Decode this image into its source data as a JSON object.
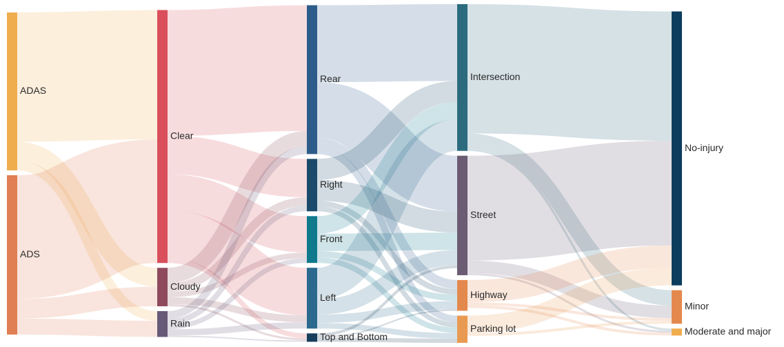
{
  "chart_data": {
    "type": "sankey",
    "title": "",
    "columns": [
      [
        "ADAS",
        "ADS"
      ],
      [
        "Clear",
        "Cloudy",
        "Rain"
      ],
      [
        "Rear",
        "Right",
        "Front",
        "Left",
        "Top and Bottom"
      ],
      [
        "Intersection",
        "Street",
        "Highway",
        "Parking lot"
      ],
      [
        "No-injury",
        "Minor",
        "Moderate and major"
      ]
    ],
    "nodes": [
      {
        "name": "ADAS",
        "color": "#F0AD4E"
      },
      {
        "name": "ADS",
        "color": "#E07E54"
      },
      {
        "name": "Clear",
        "color": "#D94F5C"
      },
      {
        "name": "Cloudy",
        "color": "#8E4A5C"
      },
      {
        "name": "Rain",
        "color": "#665A78"
      },
      {
        "name": "Rear",
        "color": "#2E5C8A"
      },
      {
        "name": "Right",
        "color": "#1B4A6B"
      },
      {
        "name": "Front",
        "color": "#0E7A8C"
      },
      {
        "name": "Left",
        "color": "#2B6A8E"
      },
      {
        "name": "Top and Bottom",
        "color": "#173E5C"
      },
      {
        "name": "Intersection",
        "color": "#2C6B7E"
      },
      {
        "name": "Street",
        "color": "#6B5B73"
      },
      {
        "name": "Highway",
        "color": "#E4894E"
      },
      {
        "name": "Parking lot",
        "color": "#E99A52"
      },
      {
        "name": "No-injury",
        "color": "#0D3D5C"
      },
      {
        "name": "Minor",
        "color": "#E4894E"
      },
      {
        "name": "Moderate and major",
        "color": "#F0AD4E"
      }
    ],
    "links": [
      {
        "source": "ADAS",
        "target": "Clear",
        "value": 185
      },
      {
        "source": "ADAS",
        "target": "Cloudy",
        "value": 27
      },
      {
        "source": "ADAS",
        "target": "Rain",
        "value": 14
      },
      {
        "source": "ADS",
        "target": "Clear",
        "value": 177
      },
      {
        "source": "ADS",
        "target": "Cloudy",
        "value": 28
      },
      {
        "source": "ADS",
        "target": "Rain",
        "value": 23
      },
      {
        "source": "Clear",
        "target": "Rear",
        "value": 180
      },
      {
        "source": "Clear",
        "target": "Right",
        "value": 55
      },
      {
        "source": "Clear",
        "target": "Front",
        "value": 52
      },
      {
        "source": "Clear",
        "target": "Left",
        "value": 68
      },
      {
        "source": "Clear",
        "target": "Top and Bottom",
        "value": 7
      },
      {
        "source": "Cloudy",
        "target": "Rear",
        "value": 22
      },
      {
        "source": "Cloudy",
        "target": "Right",
        "value": 12
      },
      {
        "source": "Cloudy",
        "target": "Front",
        "value": 8
      },
      {
        "source": "Cloudy",
        "target": "Left",
        "value": 10
      },
      {
        "source": "Cloudy",
        "target": "Top and Bottom",
        "value": 3
      },
      {
        "source": "Rain",
        "target": "Rear",
        "value": 11
      },
      {
        "source": "Rain",
        "target": "Right",
        "value": 8
      },
      {
        "source": "Rain",
        "target": "Front",
        "value": 7
      },
      {
        "source": "Rain",
        "target": "Left",
        "value": 9
      },
      {
        "source": "Rain",
        "target": "Top and Bottom",
        "value": 2
      },
      {
        "source": "Rear",
        "target": "Intersection",
        "value": 110
      },
      {
        "source": "Rear",
        "target": "Street",
        "value": 80
      },
      {
        "source": "Rear",
        "target": "Highway",
        "value": 13
      },
      {
        "source": "Rear",
        "target": "Parking lot",
        "value": 10
      },
      {
        "source": "Right",
        "target": "Intersection",
        "value": 30
      },
      {
        "source": "Right",
        "target": "Street",
        "value": 30
      },
      {
        "source": "Right",
        "target": "Highway",
        "value": 8
      },
      {
        "source": "Right",
        "target": "Parking lot",
        "value": 7
      },
      {
        "source": "Front",
        "target": "Intersection",
        "value": 25
      },
      {
        "source": "Front",
        "target": "Street",
        "value": 25
      },
      {
        "source": "Front",
        "target": "Highway",
        "value": 9
      },
      {
        "source": "Front",
        "target": "Parking lot",
        "value": 8
      },
      {
        "source": "Left",
        "target": "Intersection",
        "value": 45
      },
      {
        "source": "Left",
        "target": "Street",
        "value": 22
      },
      {
        "source": "Left",
        "target": "Highway",
        "value": 12
      },
      {
        "source": "Left",
        "target": "Parking lot",
        "value": 8
      },
      {
        "source": "Top and Bottom",
        "target": "Street",
        "value": 4
      },
      {
        "source": "Top and Bottom",
        "target": "Highway",
        "value": 2
      },
      {
        "source": "Top and Bottom",
        "target": "Parking lot",
        "value": 6
      },
      {
        "source": "Intersection",
        "target": "No-injury",
        "value": 185
      },
      {
        "source": "Intersection",
        "target": "Minor",
        "value": 22
      },
      {
        "source": "Intersection",
        "target": "Moderate and major",
        "value": 3
      },
      {
        "source": "Street",
        "target": "No-injury",
        "value": 150
      },
      {
        "source": "Street",
        "target": "Minor",
        "value": 18
      },
      {
        "source": "Street",
        "target": "Moderate and major",
        "value": 3
      },
      {
        "source": "Highway",
        "target": "No-injury",
        "value": 32
      },
      {
        "source": "Highway",
        "target": "Minor",
        "value": 4
      },
      {
        "source": "Highway",
        "target": "Moderate and major",
        "value": 4
      },
      {
        "source": "Parking lot",
        "target": "No-injury",
        "value": 25
      },
      {
        "source": "Parking lot",
        "target": "Minor",
        "value": 4
      }
    ]
  }
}
